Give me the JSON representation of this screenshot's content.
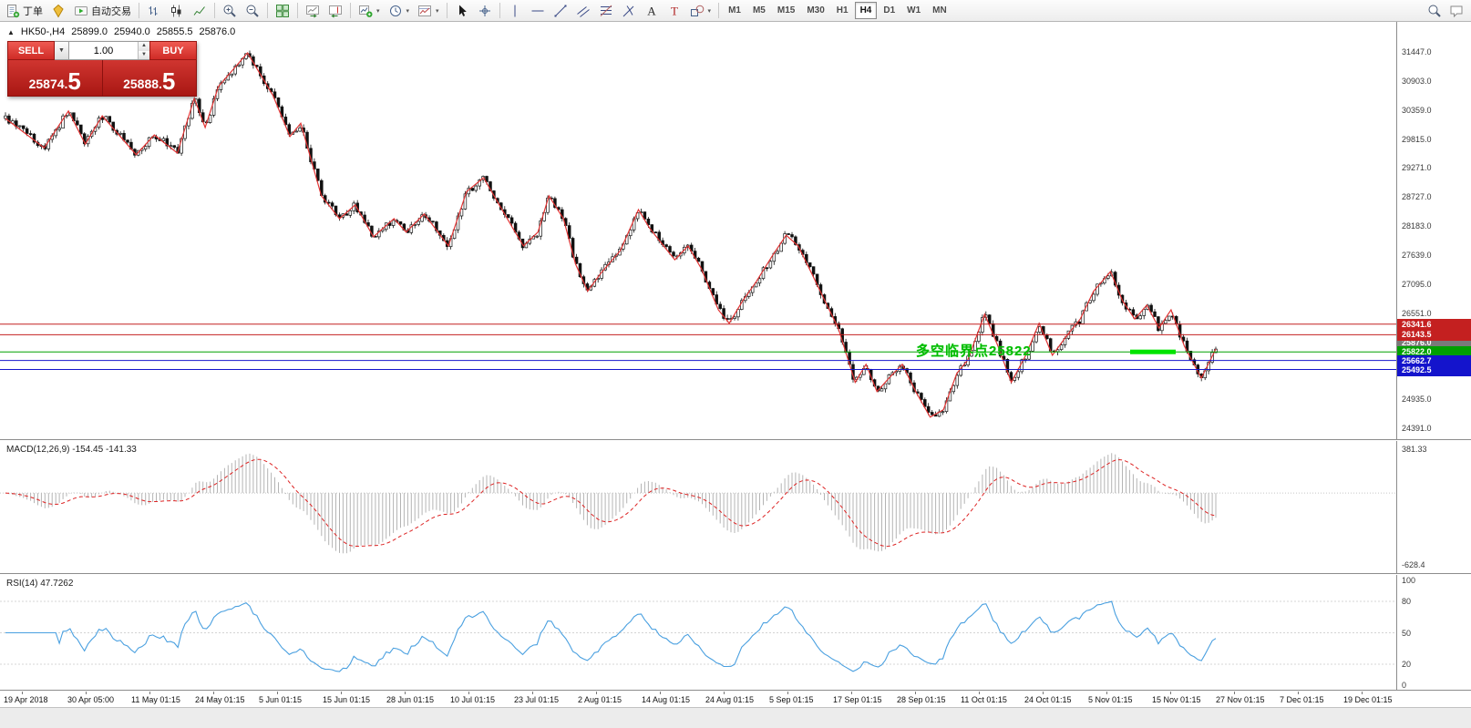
{
  "toolbar": {
    "orders_label": "丁单",
    "autotrade_label": "自动交易",
    "icon_groups": [
      [
        "bar-chart-icon",
        "candlestick-icon",
        "line-chart-icon"
      ],
      [
        "zoom-in-icon",
        "zoom-out-icon"
      ],
      [
        "tile-windows-icon"
      ],
      [
        "auto-scroll-icon",
        "chart-shift-icon"
      ],
      [
        "add-indicator-icon",
        "periods-icon",
        "templates-icon"
      ],
      [
        "cursor-icon",
        "crosshair-icon"
      ],
      [
        "vertical-line-icon",
        "horizontal-line-icon",
        "trendline-icon",
        "channel-icon",
        "fibonacci-icon",
        "pitchfork-icon",
        "text-icon",
        "label-icon",
        "shapes-icon"
      ]
    ],
    "timeframes": [
      {
        "label": "M1",
        "active": false
      },
      {
        "label": "M5",
        "active": false
      },
      {
        "label": "M15",
        "active": false
      },
      {
        "label": "M30",
        "active": false
      },
      {
        "label": "H1",
        "active": false
      },
      {
        "label": "H4",
        "active": true
      },
      {
        "label": "D1",
        "active": false
      },
      {
        "label": "W1",
        "active": false
      },
      {
        "label": "MN",
        "active": false
      }
    ],
    "right_icons": [
      "search-icon",
      "chat-icon"
    ]
  },
  "chart": {
    "header": {
      "expander": "▲",
      "symbol": "HK50-,H4",
      "open": "25899.0",
      "high": "25940.0",
      "low": "25855.5",
      "close": "25876.0"
    },
    "trade_panel": {
      "sell_label": "SELL",
      "buy_label": "BUY",
      "volume": "1.00",
      "bid": "25874.",
      "bid_big": "5",
      "ask": "25888.",
      "ask_big": "5"
    },
    "annotation": "多空临界点25822",
    "price_axis_labels": [
      "31447.0",
      "30903.0",
      "30359.0",
      "29815.0",
      "29271.0",
      "28727.0",
      "28183.0",
      "27639.0",
      "27095.0",
      "26551.0",
      "24935.0",
      "24391.0"
    ],
    "time_axis_labels": [
      "19 Apr 2018",
      "30 Apr 05:00",
      "11 May 01:15",
      "24 May 01:15",
      "5 Jun 01:15",
      "15 Jun 01:15",
      "28 Jun 01:15",
      "10 Jul 01:15",
      "23 Jul 01:15",
      "2 Aug 01:15",
      "14 Aug 01:15",
      "24 Aug 01:15",
      "5 Sep 01:15",
      "17 Sep 01:15",
      "28 Sep 01:15",
      "11 Oct 01:15",
      "24 Oct 01:15",
      "5 Nov 01:15",
      "15 Nov 01:15",
      "27 Nov 01:15",
      "7 Dec 01:15",
      "19 Dec 01:15"
    ]
  },
  "macd_panel": {
    "label": "MACD(12,26,9) -154.45 -141.33",
    "axis_top": "381.33",
    "axis_bottom": "-628.4"
  },
  "rsi_panel": {
    "label": "RSI(14) 47.7262",
    "axis_labels": [
      "100",
      "80",
      "50",
      "20",
      "0"
    ]
  },
  "chart_data": {
    "type": "candlestick",
    "symbol": "HK50-",
    "timeframe": "H4",
    "ohlc_current": {
      "open": 25899.0,
      "high": 25940.0,
      "low": 25855.5,
      "close": 25876.0
    },
    "bid": 25874.5,
    "ask": 25888.5,
    "volume_lots": 1.0,
    "price_axis_range": [
      24391.0,
      31447.0
    ],
    "price_axis_ticks": [
      31447.0,
      30903.0,
      30359.0,
      29815.0,
      29271.0,
      28727.0,
      28183.0,
      27639.0,
      27095.0,
      26551.0,
      24935.0,
      24391.0
    ],
    "horizontal_levels": [
      {
        "price": 26341.6,
        "color": "#c42020",
        "note": "resistance"
      },
      {
        "price": 26143.5,
        "color": "#c42020",
        "note": "resistance"
      },
      {
        "price": 25822.0,
        "color": "#00a000",
        "note": "多空临界点"
      },
      {
        "price": 25662.7,
        "color": "#1414cc",
        "note": "support"
      },
      {
        "price": 25492.5,
        "color": "#1414cc",
        "note": "support"
      }
    ],
    "current_price_label": 25876.0,
    "zigzag_price_path": [
      [
        0.0,
        30200
      ],
      [
        0.032,
        29650
      ],
      [
        0.052,
        30340
      ],
      [
        0.066,
        29720
      ],
      [
        0.08,
        30250
      ],
      [
        0.108,
        29520
      ],
      [
        0.123,
        29890
      ],
      [
        0.142,
        29550
      ],
      [
        0.156,
        30580
      ],
      [
        0.165,
        30030
      ],
      [
        0.176,
        30800
      ],
      [
        0.2,
        31430
      ],
      [
        0.221,
        30630
      ],
      [
        0.235,
        29860
      ],
      [
        0.244,
        30110
      ],
      [
        0.261,
        28750
      ],
      [
        0.276,
        28320
      ],
      [
        0.289,
        28580
      ],
      [
        0.304,
        27980
      ],
      [
        0.321,
        28320
      ],
      [
        0.331,
        28070
      ],
      [
        0.346,
        28410
      ],
      [
        0.366,
        27810
      ],
      [
        0.381,
        28830
      ],
      [
        0.395,
        29090
      ],
      [
        0.408,
        28580
      ],
      [
        0.419,
        28150
      ],
      [
        0.428,
        27810
      ],
      [
        0.44,
        28070
      ],
      [
        0.449,
        28750
      ],
      [
        0.461,
        28320
      ],
      [
        0.471,
        27470
      ],
      [
        0.481,
        26960
      ],
      [
        0.492,
        27300
      ],
      [
        0.508,
        27720
      ],
      [
        0.523,
        28490
      ],
      [
        0.532,
        28150
      ],
      [
        0.541,
        27890
      ],
      [
        0.553,
        27550
      ],
      [
        0.564,
        27810
      ],
      [
        0.575,
        27380
      ],
      [
        0.589,
        26610
      ],
      [
        0.598,
        26360
      ],
      [
        0.609,
        26780
      ],
      [
        0.62,
        27130
      ],
      [
        0.634,
        27640
      ],
      [
        0.645,
        28010
      ],
      [
        0.655,
        27810
      ],
      [
        0.666,
        27300
      ],
      [
        0.677,
        26780
      ],
      [
        0.688,
        26270
      ],
      [
        0.702,
        25250
      ],
      [
        0.711,
        25590
      ],
      [
        0.72,
        25080
      ],
      [
        0.73,
        25330
      ],
      [
        0.741,
        25590
      ],
      [
        0.752,
        25080
      ],
      [
        0.764,
        24600
      ],
      [
        0.775,
        24740
      ],
      [
        0.786,
        25420
      ],
      [
        0.795,
        25670
      ],
      [
        0.809,
        26530
      ],
      [
        0.82,
        25930
      ],
      [
        0.831,
        25250
      ],
      [
        0.843,
        25760
      ],
      [
        0.854,
        26360
      ],
      [
        0.865,
        25760
      ],
      [
        0.876,
        26100
      ],
      [
        0.888,
        26440
      ],
      [
        0.899,
        26960
      ],
      [
        0.913,
        27330
      ],
      [
        0.923,
        26780
      ],
      [
        0.933,
        26440
      ],
      [
        0.943,
        26700
      ],
      [
        0.953,
        26270
      ],
      [
        0.963,
        26610
      ],
      [
        0.974,
        25930
      ],
      [
        0.988,
        25330
      ],
      [
        1.0,
        25876
      ]
    ],
    "macd": {
      "params": [
        12,
        26,
        9
      ],
      "main_value": -154.45,
      "signal_value": -141.33,
      "axis_max": 381.33,
      "axis_min": -628.4
    },
    "rsi": {
      "period": 14,
      "value": 47.7262,
      "axis_range": [
        0,
        100
      ],
      "guide_levels": [
        80,
        50,
        20
      ]
    },
    "time_labels": [
      "19 Apr 2018",
      "30 Apr 05:00",
      "11 May 01:15",
      "24 May 01:15",
      "5 Jun 01:15",
      "15 Jun 01:15",
      "28 Jun 01:15",
      "10 Jul 01:15",
      "23 Jul 01:15",
      "2 Aug 01:15",
      "14 Aug 01:15",
      "24 Aug 01:15",
      "5 Sep 01:15",
      "17 Sep 01:15",
      "28 Sep 01:15",
      "11 Oct 01:15",
      "24 Oct 01:15",
      "5 Nov 01:15",
      "15 Nov 01:15",
      "27 Nov 01:15",
      "7 Dec 01:15",
      "19 Dec 01:15"
    ]
  }
}
